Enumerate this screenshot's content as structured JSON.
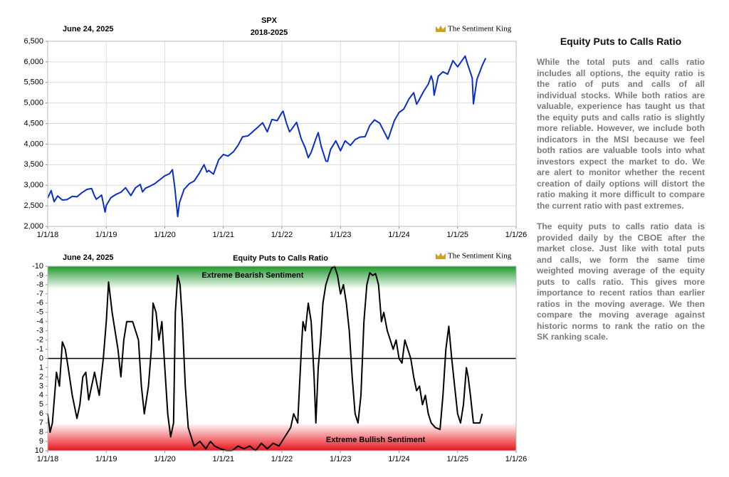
{
  "chart_data": [
    {
      "type": "line",
      "title": "SPX",
      "subtitle": "2018-2025",
      "date_label": "June 24, 2025",
      "watermark": "The Sentiment King",
      "color": "#0a2fc7",
      "grid": true,
      "xlim": [
        2018,
        2026
      ],
      "xticks": [
        {
          "value": 2018,
          "label": "1/1/18"
        },
        {
          "value": 2019,
          "label": "1/1/19"
        },
        {
          "value": 2020,
          "label": "1/1/20"
        },
        {
          "value": 2021,
          "label": "1/1/21"
        },
        {
          "value": 2022,
          "label": "1/1/22"
        },
        {
          "value": 2023,
          "label": "1/1/23"
        },
        {
          "value": 2024,
          "label": "1/1/24"
        },
        {
          "value": 2025,
          "label": "1/1/25"
        },
        {
          "value": 2026,
          "label": "1/1/26"
        }
      ],
      "ylim": [
        2000,
        6500
      ],
      "yticks": [
        {
          "value": 2000,
          "label": "2,000"
        },
        {
          "value": 2500,
          "label": "2,500"
        },
        {
          "value": 3000,
          "label": "3,000"
        },
        {
          "value": 3500,
          "label": "3,500"
        },
        {
          "value": 4000,
          "label": "4,000"
        },
        {
          "value": 4500,
          "label": "4,500"
        },
        {
          "value": 5000,
          "label": "5,000"
        },
        {
          "value": 5500,
          "label": "5,500"
        },
        {
          "value": 6000,
          "label": "6,000"
        },
        {
          "value": 6500,
          "label": "6,500"
        }
      ],
      "x": [
        2018.0,
        2018.06,
        2018.11,
        2018.17,
        2018.25,
        2018.33,
        2018.42,
        2018.5,
        2018.58,
        2018.67,
        2018.75,
        2018.8,
        2018.83,
        2018.92,
        2018.98,
        2019.0,
        2019.08,
        2019.17,
        2019.25,
        2019.33,
        2019.42,
        2019.5,
        2019.58,
        2019.62,
        2019.67,
        2019.75,
        2019.83,
        2019.92,
        2020.0,
        2020.08,
        2020.13,
        2020.17,
        2020.22,
        2020.25,
        2020.33,
        2020.42,
        2020.5,
        2020.58,
        2020.67,
        2020.72,
        2020.75,
        2020.83,
        2020.92,
        2021.0,
        2021.08,
        2021.17,
        2021.25,
        2021.33,
        2021.42,
        2021.5,
        2021.58,
        2021.67,
        2021.75,
        2021.83,
        2021.92,
        2022.0,
        2022.02,
        2022.08,
        2022.13,
        2022.17,
        2022.25,
        2022.33,
        2022.4,
        2022.45,
        2022.5,
        2022.58,
        2022.62,
        2022.67,
        2022.75,
        2022.78,
        2022.83,
        2022.92,
        2023.0,
        2023.08,
        2023.17,
        2023.25,
        2023.33,
        2023.42,
        2023.5,
        2023.58,
        2023.67,
        2023.75,
        2023.81,
        2023.83,
        2023.92,
        2024.0,
        2024.08,
        2024.17,
        2024.25,
        2024.3,
        2024.33,
        2024.42,
        2024.5,
        2024.55,
        2024.58,
        2024.6,
        2024.67,
        2024.75,
        2024.83,
        2024.92,
        2025.0,
        2025.08,
        2025.13,
        2025.17,
        2025.25,
        2025.27,
        2025.33,
        2025.42,
        2025.48
      ],
      "values": [
        2690,
        2870,
        2600,
        2740,
        2640,
        2650,
        2730,
        2720,
        2815,
        2900,
        2920,
        2740,
        2660,
        2760,
        2350,
        2510,
        2700,
        2780,
        2830,
        2940,
        2750,
        2940,
        3020,
        2840,
        2930,
        2980,
        3040,
        3140,
        3230,
        3280,
        3380,
        2950,
        2240,
        2580,
        2900,
        3040,
        3100,
        3270,
        3500,
        3320,
        3360,
        3270,
        3620,
        3750,
        3710,
        3810,
        3970,
        4180,
        4200,
        4300,
        4400,
        4520,
        4300,
        4600,
        4570,
        4770,
        4800,
        4500,
        4300,
        4370,
        4530,
        4130,
        3900,
        3670,
        3800,
        4130,
        4280,
        3950,
        3590,
        3580,
        3870,
        4080,
        3840,
        4080,
        3970,
        4110,
        4170,
        4180,
        4450,
        4590,
        4510,
        4290,
        4120,
        4190,
        4570,
        4770,
        4850,
        5100,
        5250,
        4970,
        5040,
        5280,
        5460,
        5660,
        5520,
        5190,
        5650,
        5760,
        5700,
        6030,
        5880,
        6040,
        6140,
        5950,
        5610,
        4980,
        5570,
        5910,
        6090
      ]
    },
    {
      "type": "line",
      "title": "Equity Puts to Calls Ratio",
      "date_label": "June 24, 2025",
      "watermark": "The Sentiment King",
      "color": "#000000",
      "grid": false,
      "zero_line": true,
      "inverted": true,
      "xlim": [
        2018,
        2026
      ],
      "xticks": [
        {
          "value": 2018,
          "label": "1/1/18"
        },
        {
          "value": 2019,
          "label": "1/1/19"
        },
        {
          "value": 2020,
          "label": "1/1/20"
        },
        {
          "value": 2021,
          "label": "1/1/21"
        },
        {
          "value": 2022,
          "label": "1/1/22"
        },
        {
          "value": 2023,
          "label": "1/1/23"
        },
        {
          "value": 2024,
          "label": "1/1/24"
        },
        {
          "value": 2025,
          "label": "1/1/25"
        },
        {
          "value": 2026,
          "label": "1/1/26"
        }
      ],
      "ylim": [
        -10,
        10
      ],
      "yticks": [
        -10,
        -9,
        -8,
        -7,
        -6,
        -5,
        -4,
        -3,
        -2,
        -1,
        0,
        1,
        2,
        3,
        4,
        5,
        6,
        7,
        8,
        9,
        10
      ],
      "bands": [
        {
          "from": -10,
          "to": -7.5,
          "color": "#1e9a2c",
          "label": "Extreme Bearish Sentiment"
        },
        {
          "from": 7,
          "to": 10,
          "color": "#e8141c",
          "label": "Extreme Bullish Sentiment"
        }
      ],
      "x": [
        2018.0,
        2018.04,
        2018.08,
        2018.15,
        2018.2,
        2018.25,
        2018.3,
        2018.35,
        2018.42,
        2018.5,
        2018.55,
        2018.6,
        2018.65,
        2018.7,
        2018.8,
        2018.88,
        2018.95,
        2019.0,
        2019.04,
        2019.1,
        2019.15,
        2019.2,
        2019.25,
        2019.3,
        2019.35,
        2019.45,
        2019.55,
        2019.6,
        2019.65,
        2019.72,
        2019.77,
        2019.8,
        2019.85,
        2019.9,
        2019.95,
        2020.0,
        2020.05,
        2020.1,
        2020.15,
        2020.18,
        2020.22,
        2020.26,
        2020.3,
        2020.35,
        2020.4,
        2020.45,
        2020.5,
        2020.6,
        2020.7,
        2020.78,
        2020.85,
        2020.95,
        2021.05,
        2021.15,
        2021.25,
        2021.35,
        2021.45,
        2021.55,
        2021.65,
        2021.75,
        2021.85,
        2021.95,
        2022.05,
        2022.15,
        2022.2,
        2022.27,
        2022.3,
        2022.34,
        2022.36,
        2022.4,
        2022.45,
        2022.5,
        2022.55,
        2022.58,
        2022.62,
        2022.66,
        2022.7,
        2022.75,
        2022.8,
        2022.85,
        2022.9,
        2022.95,
        2023.0,
        2023.05,
        2023.1,
        2023.15,
        2023.2,
        2023.25,
        2023.3,
        2023.35,
        2023.4,
        2023.45,
        2023.5,
        2023.55,
        2023.6,
        2023.65,
        2023.7,
        2023.74,
        2023.8,
        2023.85,
        2023.9,
        2023.95,
        2024.0,
        2024.05,
        2024.1,
        2024.15,
        2024.2,
        2024.25,
        2024.3,
        2024.35,
        2024.4,
        2024.45,
        2024.5,
        2024.55,
        2024.62,
        2024.7,
        2024.75,
        2024.8,
        2024.85,
        2024.9,
        2024.95,
        2025.0,
        2025.05,
        2025.1,
        2025.15,
        2025.18,
        2025.22,
        2025.27,
        2025.32,
        2025.38,
        2025.42
      ],
      "values": [
        6,
        8,
        7,
        1.5,
        3,
        -1.8,
        -1,
        1,
        4,
        6.5,
        5,
        2,
        1.5,
        4.5,
        1.5,
        4,
        0,
        -4,
        -8.3,
        -5,
        -3,
        -1,
        2,
        -2,
        -4,
        -4,
        -2,
        3,
        6,
        3,
        -1,
        -6,
        -5,
        -2,
        -4,
        1,
        6,
        8.5,
        7,
        -5,
        -9,
        -8,
        -4,
        3,
        7.5,
        8.5,
        9.5,
        9,
        9.8,
        9,
        9.5,
        9.8,
        10,
        10,
        9.5,
        9.8,
        9.5,
        10,
        9.2,
        9.8,
        9.2,
        9.5,
        8.5,
        7.5,
        6,
        7,
        3,
        -2,
        -4,
        -3,
        -6,
        -4,
        2,
        7,
        1,
        -2,
        -6,
        -8,
        -9,
        -9.8,
        -10,
        -9,
        -7,
        -8,
        -6,
        -3,
        2,
        6,
        7,
        4,
        -4,
        -8,
        -9.3,
        -9,
        -9.2,
        -8,
        -4,
        -5,
        -3,
        -2,
        -1,
        -2,
        0,
        0.5,
        -2,
        -1,
        0,
        2,
        3.5,
        3,
        5,
        4,
        6,
        7,
        7.5,
        7.7,
        4,
        -1,
        -3.5,
        0,
        3,
        6,
        7,
        5,
        1,
        2,
        4,
        7,
        7,
        7,
        6
      ]
    }
  ],
  "sidebar": {
    "title": "Equity Puts to Calls Ratio",
    "paragraphs": [
      "While the total puts and calls ratio includes all options, the equity ratio is the ratio of puts and calls of all individual stocks. While both ratios are valuable, experience has taught us that the equity puts and calls ratio is slightly more reliable. However, we include both indicators in the MSI because we feel both ratios are valuable tools into what investors expect the market to do. We are alert to monitor whether the recent creation of daily options will distort the ratio making it more difficult to compare the current ratio with past extremes.",
      "The equity puts to calls ratio data is provided daily by the CBOE after the market close. Just like with total puts and calls, we form the same time weighted moving average of the equity puts to calls ratio. This gives more importance to recent ratios than earlier ratios in the moving average. We then compare the moving average against historic norms to rank the ratio on the SK ranking scale."
    ]
  }
}
